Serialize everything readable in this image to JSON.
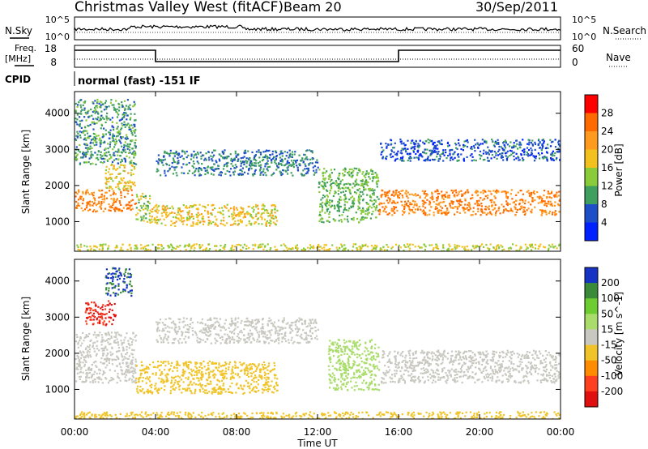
{
  "header": {
    "station": "Christmas Valley West (fitACF)",
    "beam": "Beam 20",
    "date": "30/Sep/2011"
  },
  "strips": {
    "nsky_label": "N.Sky",
    "nsearch_label": "N.Search",
    "freq_label_line1": "Freq.",
    "freq_label_line2": "[MHz]",
    "nave_label": "Nave",
    "cpid_label": "CPID",
    "cpid_text": "normal (fast) -151 IF",
    "nsky_ticks": [
      "10^5",
      "10^0"
    ],
    "nsearch_ticks": [
      "10^5",
      "10^0"
    ],
    "freq_ticks": [
      "18",
      "8"
    ],
    "nave_ticks": [
      "60",
      "0"
    ]
  },
  "axes": {
    "ylabel": "Slant Range [km]",
    "xlabel": "Time UT",
    "yticks": [
      "1000",
      "2000",
      "3000",
      "4000"
    ],
    "xticks": [
      "00:00",
      "04:00",
      "08:00",
      "12:00",
      "16:00",
      "20:00",
      "00:00"
    ]
  },
  "colorbars": {
    "power": {
      "label": "Power [dB]",
      "ticks": [
        "28",
        "24",
        "20",
        "16",
        "12",
        "8",
        "4"
      ],
      "colors": [
        "#ff0000",
        "#ff6a00",
        "#ff9a1f",
        "#f2c11d",
        "#8acb3a",
        "#3f9f5e",
        "#1f4fc8",
        "#0020ff"
      ]
    },
    "velocity": {
      "label": "Velocity [m s^-1]",
      "ticks": [
        "200",
        "100",
        "50",
        "15",
        "-15",
        "-50",
        "-100",
        "-200"
      ],
      "colors": [
        "#1633c4",
        "#3a8a3a",
        "#6dcc30",
        "#a9dc6a",
        "#c8c8c0",
        "#f0c428",
        "#ff8c00",
        "#ff4020",
        "#e01010"
      ]
    }
  },
  "chart_data": [
    {
      "type": "line",
      "x": [
        0,
        1,
        2,
        3,
        4,
        5,
        6,
        7,
        8,
        9,
        10,
        11,
        12,
        13,
        14,
        15,
        16,
        17,
        18,
        19,
        20,
        21,
        22,
        23,
        24
      ],
      "series": [
        {
          "values": [
            17,
            17,
            17,
            17,
            10,
            10,
            10,
            10,
            10,
            10,
            10,
            10,
            10,
            10,
            10,
            10,
            17,
            17,
            17,
            17,
            17,
            17,
            17,
            17,
            17
          ]
        }
      ],
      "title": "Freq. [MHz]",
      "ylim": [
        8,
        18
      ]
    },
    {
      "type": "heatmap",
      "title": "Power [dB]",
      "xlabel": "Time UT",
      "ylabel": "Slant Range [km]",
      "xlim": [
        0,
        24
      ],
      "ylim": [
        180,
        4600
      ],
      "bands": [
        {
          "t0": 0.0,
          "t1": 3.0,
          "r0": 1300,
          "r1": 1900,
          "value": 24
        },
        {
          "t0": 1.5,
          "t1": 3.0,
          "r0": 1900,
          "r1": 2600,
          "value": 18
        },
        {
          "t0": 0.0,
          "t1": 3.0,
          "r0": 2600,
          "r1": 4400,
          "value": 10
        },
        {
          "t0": 3.0,
          "t1": 3.7,
          "r0": 1000,
          "r1": 1800,
          "value": 14
        },
        {
          "t0": 3.7,
          "t1": 10.0,
          "r0": 900,
          "r1": 1500,
          "value": 18
        },
        {
          "t0": 4.0,
          "t1": 12.0,
          "r0": 2300,
          "r1": 3000,
          "value": 8
        },
        {
          "t0": 12.0,
          "t1": 15.0,
          "r0": 1000,
          "r1": 2500,
          "value": 12
        },
        {
          "t0": 15.0,
          "t1": 24.0,
          "r0": 1200,
          "r1": 1900,
          "value": 24
        },
        {
          "t0": 15.0,
          "t1": 24.0,
          "r0": 2700,
          "r1": 3300,
          "value": 6
        },
        {
          "t0": 0.0,
          "t1": 24.0,
          "r0": 200,
          "r1": 400,
          "value": 16
        }
      ]
    },
    {
      "type": "heatmap",
      "title": "Velocity [m s^-1]",
      "xlabel": "Time UT",
      "ylabel": "Slant Range [km]",
      "xlim": [
        0,
        24
      ],
      "ylim": [
        180,
        4600
      ],
      "bands": [
        {
          "t0": 0.0,
          "t1": 3.0,
          "r0": 1200,
          "r1": 2600,
          "value": 0
        },
        {
          "t0": 0.5,
          "t1": 2.0,
          "r0": 2800,
          "r1": 3500,
          "value": -200
        },
        {
          "t0": 1.5,
          "t1": 2.8,
          "r0": 3600,
          "r1": 4400,
          "value": 200
        },
        {
          "t0": 3.0,
          "t1": 10.0,
          "r0": 900,
          "r1": 1800,
          "value": -40
        },
        {
          "t0": 4.0,
          "t1": 12.0,
          "r0": 2300,
          "r1": 3000,
          "value": 0
        },
        {
          "t0": 12.5,
          "t1": 15.0,
          "r0": 1000,
          "r1": 2400,
          "value": 40
        },
        {
          "t0": 15.0,
          "t1": 24.0,
          "r0": 1200,
          "r1": 2100,
          "value": 0
        },
        {
          "t0": 0.0,
          "t1": 24.0,
          "r0": 200,
          "r1": 400,
          "value": -20
        }
      ]
    }
  ]
}
